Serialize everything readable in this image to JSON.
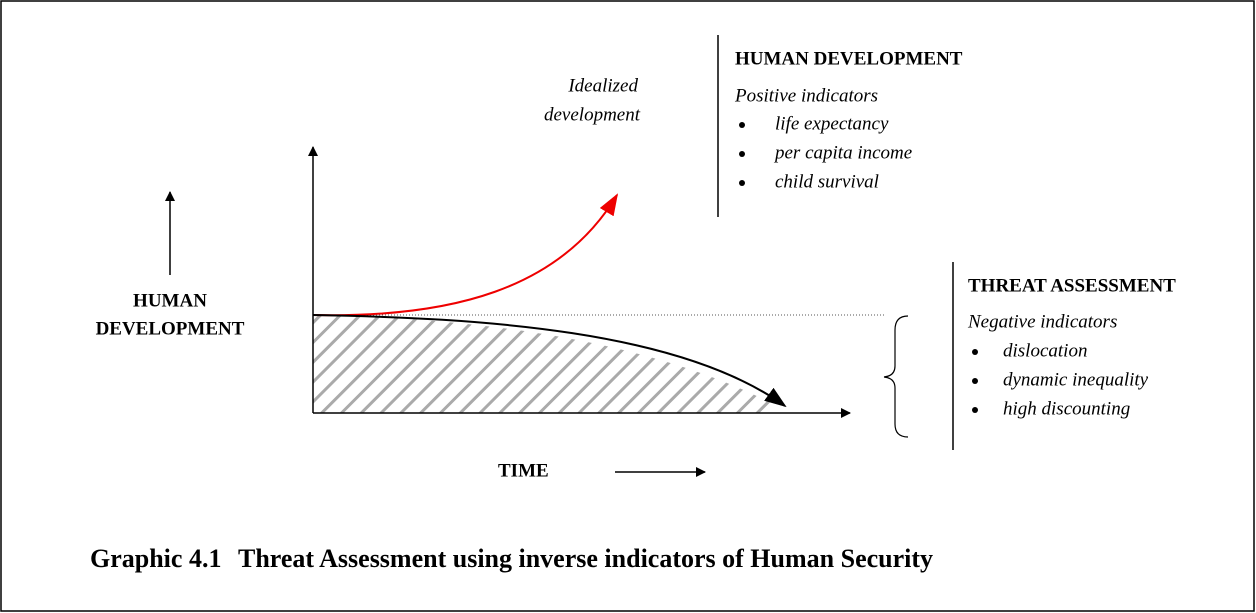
{
  "y_axis_label": [
    "HUMAN",
    "DEVELOPMENT"
  ],
  "x_axis_label": "TIME",
  "curve_label": [
    "Idealized",
    "development"
  ],
  "human_development": {
    "title": "HUMAN DEVELOPMENT",
    "subtitle": "Positive indicators",
    "items": [
      "life expectancy",
      "per capita income",
      "child survival"
    ]
  },
  "threat_assessment": {
    "title": "THREAT ASSESSMENT",
    "subtitle": "Negative indicators",
    "items": [
      "dislocation",
      "dynamic inequality",
      "high discounting"
    ]
  },
  "caption": {
    "number": "Graphic 4.1",
    "text": "Threat Assessment using inverse indicators of Human Security"
  }
}
